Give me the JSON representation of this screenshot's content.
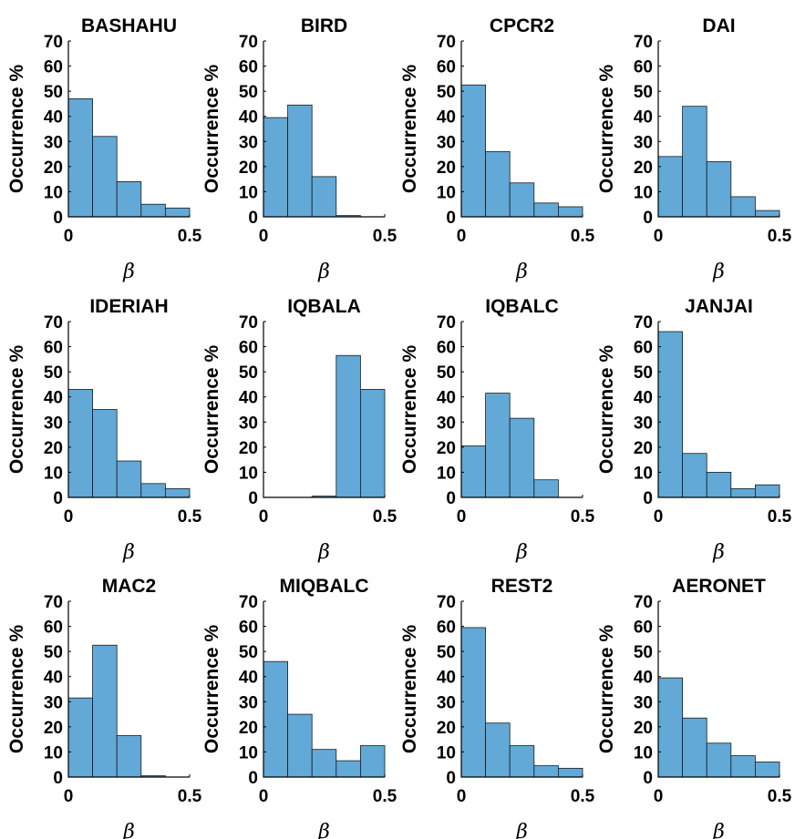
{
  "chart_data": [
    {
      "type": "bar",
      "title": "BASHAHU",
      "xlabel": "β",
      "ylabel": "Occurrence %",
      "bin_edges": [
        0,
        0.1,
        0.2,
        0.3,
        0.4,
        0.5
      ],
      "values": [
        47,
        32,
        14,
        5,
        3.5
      ],
      "xlim": [
        0,
        0.5
      ],
      "ylim": [
        0,
        70
      ],
      "xticks": [
        "0",
        "0.5"
      ],
      "yticks": [
        "0",
        "10",
        "20",
        "30",
        "40",
        "50",
        "60",
        "70"
      ],
      "grid": false
    },
    {
      "type": "bar",
      "title": "BIRD",
      "xlabel": "β",
      "ylabel": "Occurrence %",
      "bin_edges": [
        0,
        0.1,
        0.2,
        0.3,
        0.4,
        0.5
      ],
      "values": [
        39.5,
        44.5,
        16,
        0.5,
        0
      ],
      "xlim": [
        0,
        0.5
      ],
      "ylim": [
        0,
        70
      ],
      "xticks": [
        "0",
        "0.5"
      ],
      "yticks": [
        "0",
        "10",
        "20",
        "30",
        "40",
        "50",
        "60",
        "70"
      ],
      "grid": false
    },
    {
      "type": "bar",
      "title": "CPCR2",
      "xlabel": "β",
      "ylabel": "Occurrence %",
      "bin_edges": [
        0,
        0.1,
        0.2,
        0.3,
        0.4,
        0.5
      ],
      "values": [
        52.5,
        26,
        13.5,
        5.5,
        4
      ],
      "xlim": [
        0,
        0.5
      ],
      "ylim": [
        0,
        70
      ],
      "xticks": [
        "0",
        "0.5"
      ],
      "yticks": [
        "0",
        "10",
        "20",
        "30",
        "40",
        "50",
        "60",
        "70"
      ],
      "grid": false
    },
    {
      "type": "bar",
      "title": "DAI",
      "xlabel": "β",
      "ylabel": "Occurrence %",
      "bin_edges": [
        0,
        0.1,
        0.2,
        0.3,
        0.4,
        0.5
      ],
      "values": [
        24,
        44,
        22,
        8,
        2.5
      ],
      "xlim": [
        0,
        0.5
      ],
      "ylim": [
        0,
        70
      ],
      "xticks": [
        "0",
        "0.5"
      ],
      "yticks": [
        "0",
        "10",
        "20",
        "30",
        "40",
        "50",
        "60",
        "70"
      ],
      "grid": false
    },
    {
      "type": "bar",
      "title": "IDERIAH",
      "xlabel": "β",
      "ylabel": "Occurrence %",
      "bin_edges": [
        0,
        0.1,
        0.2,
        0.3,
        0.4,
        0.5
      ],
      "values": [
        43,
        35,
        14.5,
        5.5,
        3.5
      ],
      "xlim": [
        0,
        0.5
      ],
      "ylim": [
        0,
        70
      ],
      "xticks": [
        "0",
        "0.5"
      ],
      "yticks": [
        "0",
        "10",
        "20",
        "30",
        "40",
        "50",
        "60",
        "70"
      ],
      "grid": false
    },
    {
      "type": "bar",
      "title": "IQBALA",
      "xlabel": "β",
      "ylabel": "Occurrence %",
      "bin_edges": [
        0,
        0.1,
        0.2,
        0.3,
        0.4,
        0.5
      ],
      "values": [
        0,
        0,
        0.5,
        56.5,
        43
      ],
      "xlim": [
        0,
        0.5
      ],
      "ylim": [
        0,
        70
      ],
      "xticks": [
        "0",
        "0.5"
      ],
      "yticks": [
        "0",
        "10",
        "20",
        "30",
        "40",
        "50",
        "60",
        "70"
      ],
      "grid": false
    },
    {
      "type": "bar",
      "title": "IQBALC",
      "xlabel": "β",
      "ylabel": "Occurrence %",
      "bin_edges": [
        0,
        0.1,
        0.2,
        0.3,
        0.4,
        0.5
      ],
      "values": [
        20.5,
        41.5,
        31.5,
        7,
        0
      ],
      "xlim": [
        0,
        0.5
      ],
      "ylim": [
        0,
        70
      ],
      "xticks": [
        "0",
        "0.5"
      ],
      "yticks": [
        "0",
        "10",
        "20",
        "30",
        "40",
        "50",
        "60",
        "70"
      ],
      "grid": false
    },
    {
      "type": "bar",
      "title": "JANJAI",
      "xlabel": "β",
      "ylabel": "Occurrence %",
      "bin_edges": [
        0,
        0.1,
        0.2,
        0.3,
        0.4,
        0.5
      ],
      "values": [
        66,
        17.5,
        10,
        3.5,
        5
      ],
      "xlim": [
        0,
        0.5
      ],
      "ylim": [
        0,
        70
      ],
      "xticks": [
        "0",
        "0.5"
      ],
      "yticks": [
        "0",
        "10",
        "20",
        "30",
        "40",
        "50",
        "60",
        "70"
      ],
      "grid": false
    },
    {
      "type": "bar",
      "title": "MAC2",
      "xlabel": "β",
      "ylabel": "Occurrence %",
      "bin_edges": [
        0,
        0.1,
        0.2,
        0.3,
        0.4,
        0.5
      ],
      "values": [
        31.5,
        52.5,
        16.5,
        0.5,
        0
      ],
      "xlim": [
        0,
        0.5
      ],
      "ylim": [
        0,
        70
      ],
      "xticks": [
        "0",
        "0.5"
      ],
      "yticks": [
        "0",
        "10",
        "20",
        "30",
        "40",
        "50",
        "60",
        "70"
      ],
      "grid": false
    },
    {
      "type": "bar",
      "title": "MIQBALC",
      "xlabel": "β",
      "ylabel": "Occurrence %",
      "bin_edges": [
        0,
        0.1,
        0.2,
        0.3,
        0.4,
        0.5
      ],
      "values": [
        46,
        25,
        11,
        6.5,
        12.5
      ],
      "xlim": [
        0,
        0.5
      ],
      "ylim": [
        0,
        70
      ],
      "xticks": [
        "0",
        "0.5"
      ],
      "yticks": [
        "0",
        "10",
        "20",
        "30",
        "40",
        "50",
        "60",
        "70"
      ],
      "grid": false
    },
    {
      "type": "bar",
      "title": "REST2",
      "xlabel": "β",
      "ylabel": "Occurrence %",
      "bin_edges": [
        0,
        0.1,
        0.2,
        0.3,
        0.4,
        0.5
      ],
      "values": [
        59.5,
        21.5,
        12.5,
        4.5,
        3.5
      ],
      "xlim": [
        0,
        0.5
      ],
      "ylim": [
        0,
        70
      ],
      "xticks": [
        "0",
        "0.5"
      ],
      "yticks": [
        "0",
        "10",
        "20",
        "30",
        "40",
        "50",
        "60",
        "70"
      ],
      "grid": false
    },
    {
      "type": "bar",
      "title": "AERONET",
      "xlabel": "β",
      "ylabel": "Occurrence %",
      "bin_edges": [
        0,
        0.1,
        0.2,
        0.3,
        0.4,
        0.5
      ],
      "values": [
        39.5,
        23.5,
        13.5,
        8.5,
        6
      ],
      "xlim": [
        0,
        0.5
      ],
      "ylim": [
        0,
        70
      ],
      "xticks": [
        "0",
        "0.5"
      ],
      "yticks": [
        "0",
        "10",
        "20",
        "30",
        "40",
        "50",
        "60",
        "70"
      ],
      "grid": false
    }
  ],
  "colors": {
    "bar_fill": "#62a9d8",
    "bar_edge": "#1a1a1a",
    "axis": "#000000"
  }
}
